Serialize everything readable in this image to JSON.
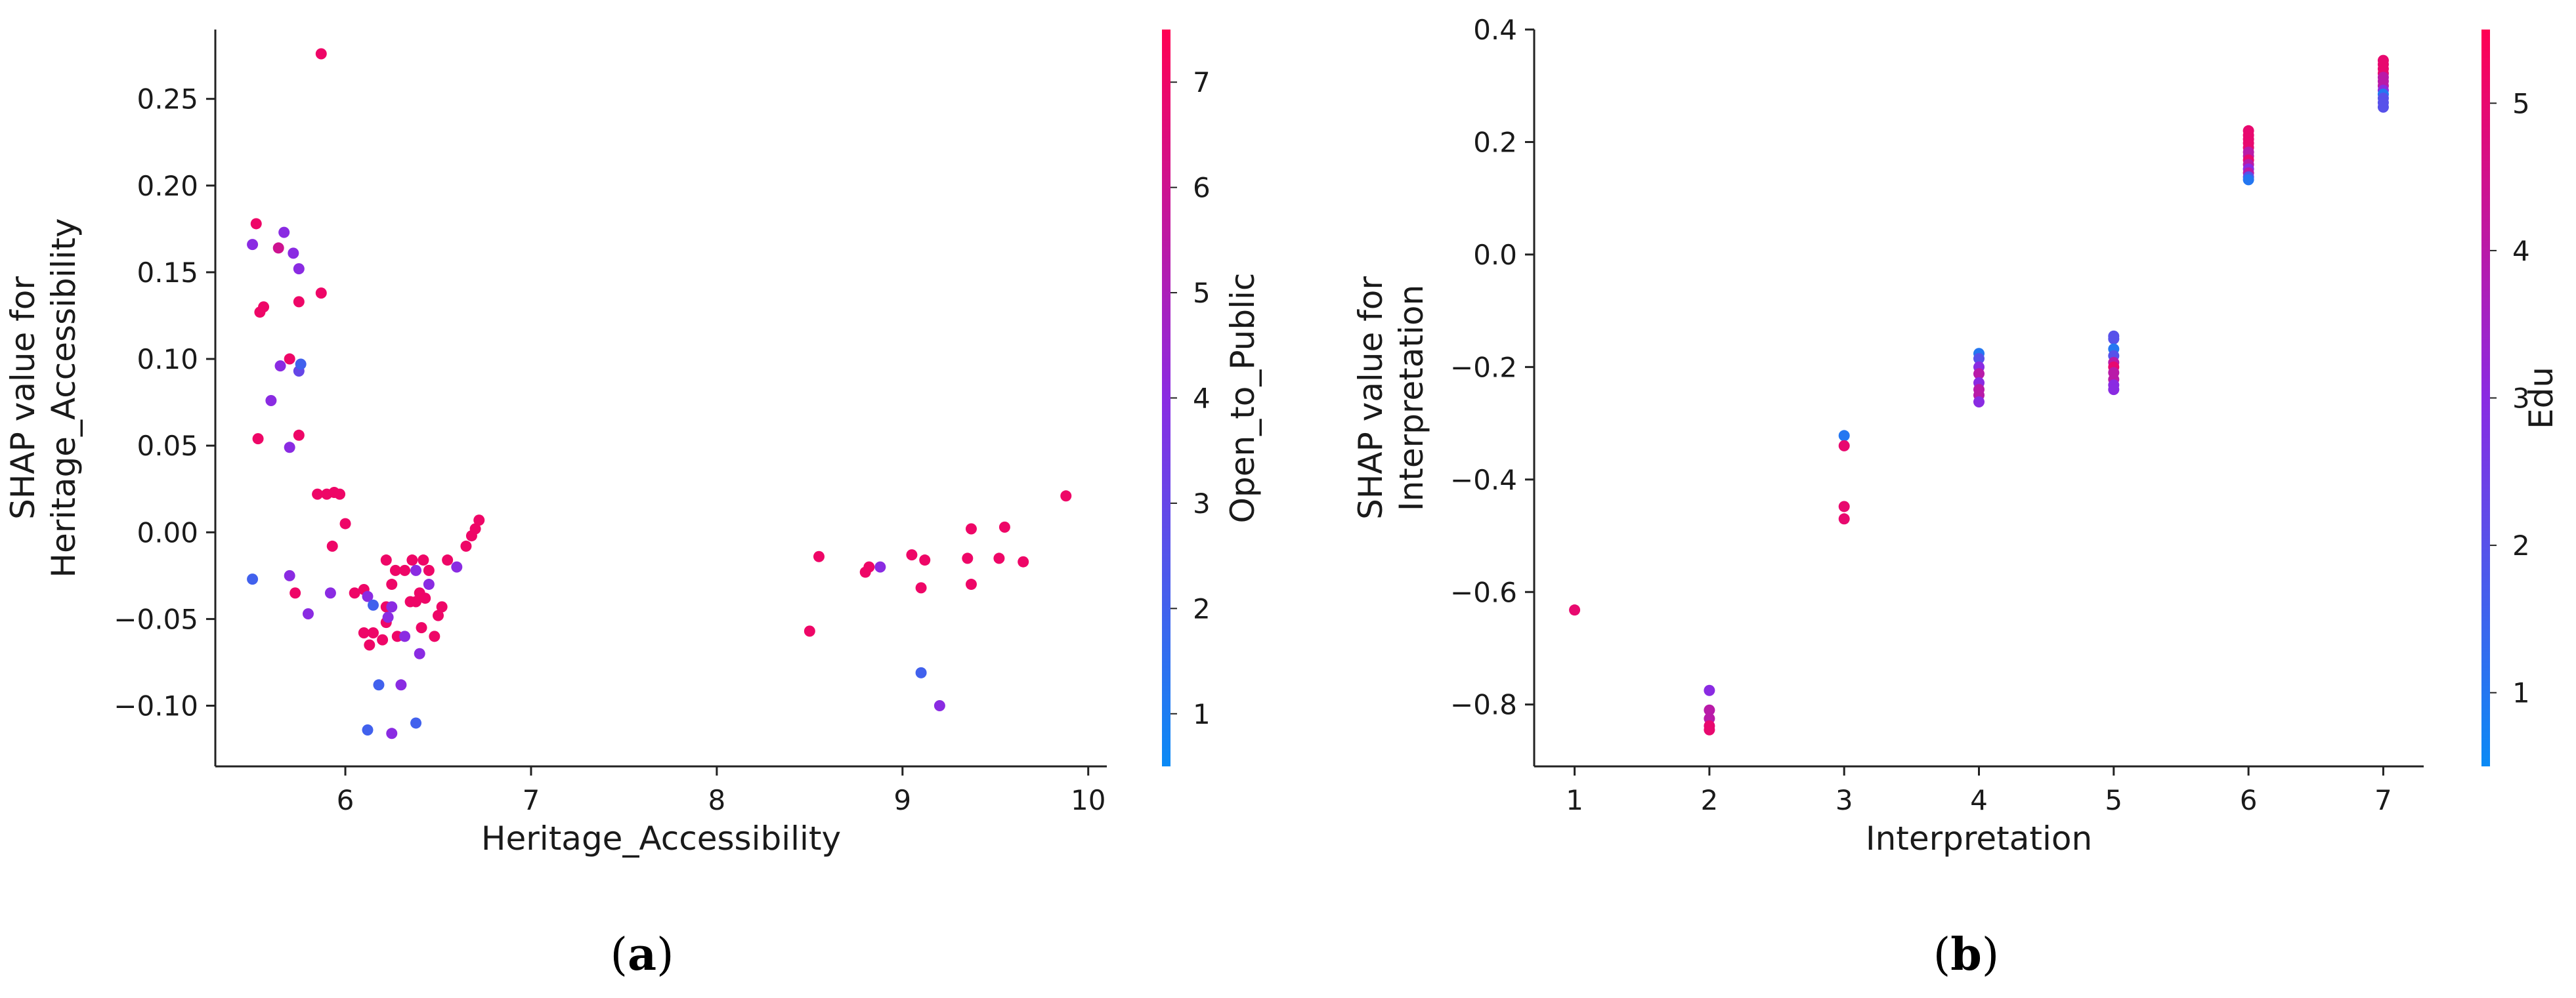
{
  "colors": {
    "low": "#0a8af5",
    "mid": "#8a2be2",
    "high": "#ff0052"
  },
  "chart_data": [
    {
      "type": "scatter",
      "panel_label": [
        "(",
        "a",
        ")"
      ],
      "xlabel": "Heritage_Accessibility",
      "ylabel_lines": [
        "SHAP value for",
        "Heritage_Accessibility"
      ],
      "xlim": [
        5.3,
        10.1
      ],
      "ylim": [
        -0.135,
        0.29
      ],
      "xticks": [
        6,
        7,
        8,
        9,
        10
      ],
      "yticks": [
        -0.1,
        -0.05,
        0.0,
        0.05,
        0.1,
        0.15,
        0.2,
        0.25
      ],
      "ytick_labels": [
        "−0.10",
        "−0.05",
        "0.00",
        "0.05",
        "0.10",
        "0.15",
        "0.20",
        "0.25"
      ],
      "colorbar": {
        "label": "Open_to_Public",
        "range": [
          0.5,
          7.5
        ],
        "ticks": [
          1,
          2,
          3,
          4,
          5,
          6,
          7
        ]
      },
      "points": [
        [
          5.87,
          0.276,
          7
        ],
        [
          5.52,
          0.178,
          7
        ],
        [
          5.5,
          0.166,
          4
        ],
        [
          5.64,
          0.164,
          6
        ],
        [
          5.67,
          0.173,
          4
        ],
        [
          5.72,
          0.161,
          4
        ],
        [
          5.75,
          0.152,
          4
        ],
        [
          5.54,
          0.127,
          7
        ],
        [
          5.56,
          0.13,
          7
        ],
        [
          5.75,
          0.133,
          7
        ],
        [
          5.87,
          0.138,
          7
        ],
        [
          5.65,
          0.096,
          4
        ],
        [
          5.7,
          0.1,
          7
        ],
        [
          5.75,
          0.093,
          3
        ],
        [
          5.76,
          0.097,
          2
        ],
        [
          5.6,
          0.076,
          4
        ],
        [
          5.53,
          0.054,
          7
        ],
        [
          5.7,
          0.049,
          4
        ],
        [
          5.75,
          0.056,
          7
        ],
        [
          5.85,
          0.022,
          7
        ],
        [
          5.9,
          0.022,
          7
        ],
        [
          5.94,
          0.023,
          7
        ],
        [
          5.97,
          0.022,
          7
        ],
        [
          5.93,
          -0.008,
          7
        ],
        [
          6.0,
          0.005,
          7
        ],
        [
          5.5,
          -0.027,
          2
        ],
        [
          5.7,
          -0.025,
          4
        ],
        [
          5.73,
          -0.035,
          7
        ],
        [
          5.8,
          -0.047,
          4
        ],
        [
          5.92,
          -0.035,
          4
        ],
        [
          6.05,
          -0.035,
          7
        ],
        [
          6.1,
          -0.033,
          7
        ],
        [
          6.12,
          -0.037,
          4
        ],
        [
          6.15,
          -0.042,
          2
        ],
        [
          6.22,
          -0.043,
          7
        ],
        [
          6.22,
          -0.016,
          7
        ],
        [
          6.25,
          -0.03,
          7
        ],
        [
          6.27,
          -0.022,
          7
        ],
        [
          6.32,
          -0.022,
          7
        ],
        [
          6.36,
          -0.016,
          7
        ],
        [
          6.38,
          -0.022,
          4
        ],
        [
          6.42,
          -0.016,
          7
        ],
        [
          6.45,
          -0.022,
          7
        ],
        [
          6.4,
          -0.035,
          7
        ],
        [
          6.45,
          -0.03,
          4
        ],
        [
          6.55,
          -0.016,
          7
        ],
        [
          6.6,
          -0.02,
          4
        ],
        [
          6.65,
          -0.008,
          7
        ],
        [
          6.68,
          -0.002,
          7
        ],
        [
          6.7,
          0.002,
          7
        ],
        [
          6.72,
          0.007,
          7
        ],
        [
          6.1,
          -0.058,
          7
        ],
        [
          6.13,
          -0.065,
          7
        ],
        [
          6.15,
          -0.058,
          7
        ],
        [
          6.2,
          -0.062,
          7
        ],
        [
          6.22,
          -0.052,
          7
        ],
        [
          6.23,
          -0.049,
          4
        ],
        [
          6.25,
          -0.043,
          4
        ],
        [
          6.28,
          -0.06,
          7
        ],
        [
          6.32,
          -0.06,
          4
        ],
        [
          6.35,
          -0.04,
          7
        ],
        [
          6.38,
          -0.04,
          7
        ],
        [
          6.41,
          -0.055,
          7
        ],
        [
          6.43,
          -0.038,
          7
        ],
        [
          6.48,
          -0.06,
          7
        ],
        [
          6.5,
          -0.048,
          7
        ],
        [
          6.52,
          -0.043,
          7
        ],
        [
          6.4,
          -0.07,
          4
        ],
        [
          6.18,
          -0.088,
          2
        ],
        [
          6.3,
          -0.088,
          4
        ],
        [
          6.12,
          -0.114,
          2
        ],
        [
          6.25,
          -0.116,
          4
        ],
        [
          6.38,
          -0.11,
          2
        ],
        [
          8.5,
          -0.057,
          7
        ],
        [
          8.55,
          -0.014,
          7
        ],
        [
          8.8,
          -0.023,
          7
        ],
        [
          8.82,
          -0.02,
          7
        ],
        [
          8.88,
          -0.02,
          4
        ],
        [
          9.05,
          -0.013,
          7
        ],
        [
          9.1,
          -0.032,
          7
        ],
        [
          9.12,
          -0.016,
          7
        ],
        [
          9.35,
          -0.015,
          7
        ],
        [
          9.37,
          0.002,
          7
        ],
        [
          9.37,
          -0.03,
          7
        ],
        [
          9.52,
          -0.015,
          7
        ],
        [
          9.55,
          0.003,
          7
        ],
        [
          9.65,
          -0.017,
          7
        ],
        [
          9.88,
          0.021,
          7
        ],
        [
          9.1,
          -0.081,
          2
        ],
        [
          9.2,
          -0.1,
          4
        ]
      ]
    },
    {
      "type": "scatter",
      "panel_label": [
        "(",
        "b",
        ")"
      ],
      "xlabel": "Interpretation",
      "ylabel_lines": [
        "SHAP value for",
        "Interpretation"
      ],
      "xlim": [
        0.7,
        7.3
      ],
      "ylim": [
        -0.91,
        0.4
      ],
      "xticks": [
        1,
        2,
        3,
        4,
        5,
        6,
        7
      ],
      "yticks": [
        -0.8,
        -0.6,
        -0.4,
        -0.2,
        0.0,
        0.2,
        0.4
      ],
      "ytick_labels": [
        "−0.8",
        "−0.6",
        "−0.4",
        "−0.2",
        "0.0",
        "0.2",
        "0.4"
      ],
      "colorbar": {
        "label": "Edu",
        "range": [
          0.5,
          5.5
        ],
        "ticks": [
          1,
          2,
          3,
          4,
          5
        ]
      },
      "points": [
        [
          1,
          -0.632,
          5
        ],
        [
          2,
          -0.775,
          3
        ],
        [
          2,
          -0.81,
          4
        ],
        [
          2,
          -0.825,
          4
        ],
        [
          2,
          -0.838,
          5
        ],
        [
          2,
          -0.845,
          5
        ],
        [
          3,
          -0.322,
          1
        ],
        [
          3,
          -0.34,
          5
        ],
        [
          3,
          -0.448,
          5
        ],
        [
          3,
          -0.47,
          5
        ],
        [
          4,
          -0.176,
          1
        ],
        [
          4,
          -0.185,
          2
        ],
        [
          4,
          -0.2,
          3
        ],
        [
          4,
          -0.212,
          4
        ],
        [
          4,
          -0.228,
          3
        ],
        [
          4,
          -0.24,
          4
        ],
        [
          4,
          -0.25,
          4
        ],
        [
          4,
          -0.262,
          3
        ],
        [
          5,
          -0.145,
          2
        ],
        [
          5,
          -0.15,
          2
        ],
        [
          5,
          -0.168,
          1
        ],
        [
          5,
          -0.18,
          2
        ],
        [
          5,
          -0.192,
          4
        ],
        [
          5,
          -0.2,
          5
        ],
        [
          5,
          -0.21,
          4
        ],
        [
          5,
          -0.222,
          4
        ],
        [
          5,
          -0.232,
          3
        ],
        [
          5,
          -0.24,
          3
        ],
        [
          6,
          0.22,
          5
        ],
        [
          6,
          0.212,
          5
        ],
        [
          6,
          0.205,
          5
        ],
        [
          6,
          0.198,
          5
        ],
        [
          6,
          0.19,
          5
        ],
        [
          6,
          0.182,
          4
        ],
        [
          6,
          0.175,
          4
        ],
        [
          6,
          0.168,
          5
        ],
        [
          6,
          0.16,
          4
        ],
        [
          6,
          0.152,
          3
        ],
        [
          6,
          0.145,
          4
        ],
        [
          6,
          0.138,
          2
        ],
        [
          6,
          0.133,
          1
        ],
        [
          7,
          0.345,
          5
        ],
        [
          7,
          0.338,
          5
        ],
        [
          7,
          0.33,
          5
        ],
        [
          7,
          0.322,
          5
        ],
        [
          7,
          0.315,
          4
        ],
        [
          7,
          0.308,
          4
        ],
        [
          7,
          0.3,
          4
        ],
        [
          7,
          0.292,
          3
        ],
        [
          7,
          0.285,
          1
        ],
        [
          7,
          0.278,
          2
        ],
        [
          7,
          0.27,
          2
        ],
        [
          7,
          0.262,
          2
        ]
      ]
    }
  ]
}
